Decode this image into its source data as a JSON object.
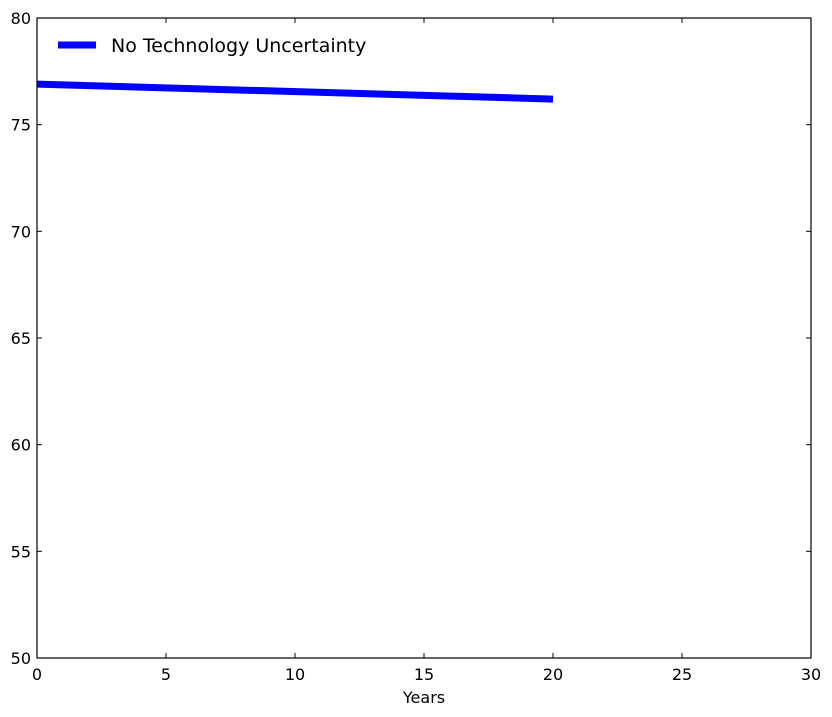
{
  "chart_data": {
    "type": "line",
    "title": "",
    "xlabel": "Years",
    "ylabel": "",
    "xlim": [
      0,
      30
    ],
    "ylim": [
      50,
      80
    ],
    "xticks": [
      0,
      5,
      10,
      15,
      20,
      25,
      30
    ],
    "yticks": [
      50,
      55,
      60,
      65,
      70,
      75,
      80
    ],
    "grid": false,
    "legend_position": "top-left",
    "series": [
      {
        "name": "No Technology Uncertainty",
        "color": "#0000ff",
        "x": [
          0,
          20
        ],
        "y": [
          76.9,
          76.2
        ]
      }
    ]
  }
}
